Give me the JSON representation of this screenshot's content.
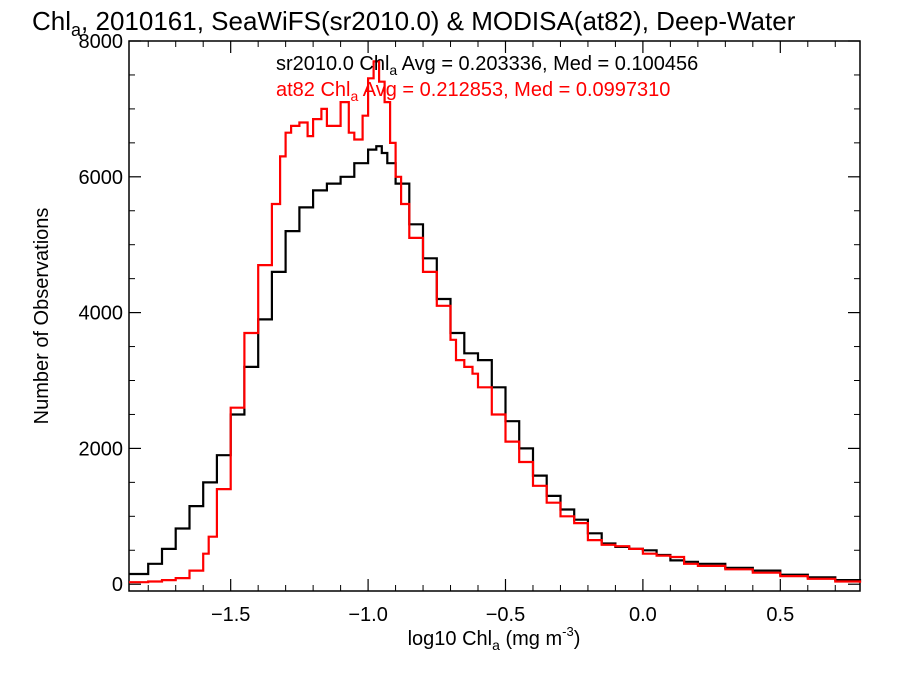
{
  "chart_data": {
    "type": "line",
    "title": "Chl",
    "title_sub": "a",
    "title_rest": ", 2010161, SeaWiFS(sr2010.0) & MODISA(at82), Deep-Water",
    "xlabel": "log10 Chl",
    "xlabel_sub": "a",
    "xlabel_unit": " (mg m",
    "xlabel_sup": "-3",
    "xlabel_close": ")",
    "ylabel": "Number of Observations",
    "xlim": [
      -1.87,
      0.79
    ],
    "ylim": [
      -100,
      8000
    ],
    "xticks": [
      -1.5,
      -1.0,
      -0.5,
      0.0,
      0.5
    ],
    "xtick_labels": [
      "−1.5",
      "−1.0",
      "−0.5",
      "0.0",
      "0.5"
    ],
    "yticks": [
      0,
      2000,
      4000,
      6000,
      8000
    ],
    "ytick_labels": [
      "0",
      "2000",
      "4000",
      "6000",
      "8000"
    ],
    "stats": [
      {
        "pre": "sr2010.0 Chl",
        "sub": "a",
        "post": " Avg = 0.203336, Med = 0.100456",
        "color": "#000000"
      },
      {
        "pre": "at82 Chl",
        "sub": "a",
        "post": " Avg = 0.212853, Med = 0.0997310",
        "color": "#ff0000"
      }
    ],
    "series": [
      {
        "color": "#000000",
        "x": [
          -1.87,
          -1.8,
          -1.75,
          -1.7,
          -1.65,
          -1.6,
          -1.55,
          -1.5,
          -1.45,
          -1.4,
          -1.35,
          -1.3,
          -1.25,
          -1.2,
          -1.15,
          -1.1,
          -1.05,
          -1.0,
          -0.97,
          -0.95,
          -0.93,
          -0.9,
          -0.85,
          -0.8,
          -0.75,
          -0.7,
          -0.65,
          -0.6,
          -0.55,
          -0.5,
          -0.45,
          -0.4,
          -0.35,
          -0.3,
          -0.25,
          -0.2,
          -0.15,
          -0.1,
          -0.05,
          0.0,
          0.05,
          0.1,
          0.15,
          0.2,
          0.3,
          0.4,
          0.5,
          0.6,
          0.7,
          0.79
        ],
        "y": [
          150,
          300,
          520,
          820,
          1150,
          1500,
          1900,
          2500,
          3200,
          3900,
          4600,
          5200,
          5550,
          5800,
          5900,
          6000,
          6200,
          6400,
          6450,
          6350,
          6200,
          5900,
          5300,
          4800,
          4200,
          3700,
          3400,
          3300,
          2900,
          2400,
          2000,
          1600,
          1300,
          1100,
          950,
          750,
          600,
          550,
          520,
          500,
          430,
          350,
          330,
          300,
          240,
          200,
          140,
          100,
          60,
          30
        ]
      },
      {
        "color": "#ff0000",
        "x": [
          -1.87,
          -1.8,
          -1.75,
          -1.7,
          -1.65,
          -1.6,
          -1.58,
          -1.55,
          -1.5,
          -1.45,
          -1.4,
          -1.35,
          -1.32,
          -1.3,
          -1.28,
          -1.25,
          -1.22,
          -1.2,
          -1.17,
          -1.15,
          -1.12,
          -1.1,
          -1.07,
          -1.05,
          -1.02,
          -1.0,
          -0.98,
          -0.96,
          -0.94,
          -0.92,
          -0.9,
          -0.88,
          -0.85,
          -0.8,
          -0.75,
          -0.7,
          -0.68,
          -0.65,
          -0.62,
          -0.6,
          -0.55,
          -0.5,
          -0.45,
          -0.4,
          -0.35,
          -0.3,
          -0.25,
          -0.2,
          -0.15,
          -0.1,
          -0.05,
          0.0,
          0.05,
          0.1,
          0.15,
          0.2,
          0.3,
          0.4,
          0.5,
          0.6,
          0.7,
          0.79
        ],
        "y": [
          30,
          40,
          60,
          90,
          200,
          450,
          700,
          1400,
          2600,
          3700,
          4700,
          5600,
          6300,
          6650,
          6750,
          6800,
          6600,
          6850,
          7000,
          6750,
          6750,
          7100,
          6650,
          6550,
          6900,
          7450,
          7700,
          7400,
          7100,
          6500,
          6000,
          5600,
          5100,
          4600,
          4100,
          3600,
          3300,
          3200,
          3100,
          2900,
          2500,
          2100,
          1800,
          1450,
          1200,
          1000,
          900,
          650,
          580,
          560,
          520,
          450,
          420,
          400,
          300,
          270,
          220,
          170,
          120,
          80,
          40,
          20
        ]
      }
    ]
  }
}
